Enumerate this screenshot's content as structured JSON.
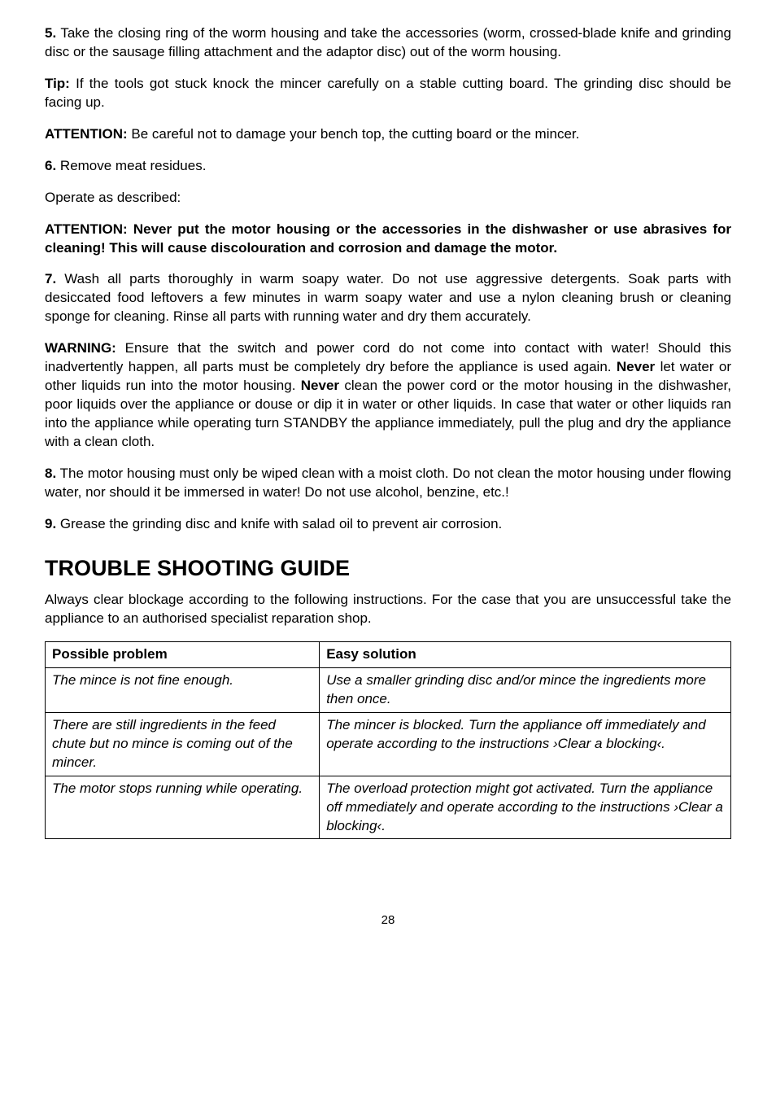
{
  "paragraphs": {
    "p5_lead": "5.",
    "p5_text": " Take the closing ring of the worm housing and take the accessories (worm, crossed-blade knife and grinding disc or the sausage filling attachment and the adaptor disc) out of the worm housing.",
    "tip_lead": "Tip:",
    "tip_text": " If the tools got stuck knock the mincer carefully on a stable cutting board. The grinding disc should be facing up.",
    "attention1_lead": "ATTENTION:",
    "attention1_text": " Be careful not to damage your bench top, the cutting board or the mincer.",
    "p6_lead": "6.",
    "p6_text": " Remove meat residues.",
    "operate": "Operate as described:",
    "attention_block": "ATTENTION: Never put the motor housing or the accessories in the dishwasher or use abrasives for cleaning! This will cause discolouration and corrosion and damage the motor.",
    "p7_lead": "7.",
    "p7_text": " Wash all parts thoroughly in warm soapy water. Do not use aggressive detergents. Soak parts with desiccated food leftovers a few minutes in warm soapy water and use a nylon cleaning brush or cleaning sponge for cleaning. Rinse all parts with running water and dry them accurately.",
    "warning_lead": "WARNING:",
    "warning_text1": " Ensure that the switch and power cord do not come into contact with water! Should this inadvertently happen, all parts must be completely dry before the appliance is used again. ",
    "warning_never1": "Never",
    "warning_text2": " let water or other liquids run into the motor housing. ",
    "warning_never2": "Never",
    "warning_text3": " clean the power cord or the motor housing in the dishwasher, poor liquids over the appliance or douse or dip it in water or other liquids. In case that water or other liquids ran into the appliance while operating turn STANDBY the appliance immediately, pull the plug and dry the appliance with a clean cloth.",
    "p8_lead": "8.",
    "p8_text": " The motor housing must only be wiped clean with a moist cloth. Do not clean the motor housing under flowing water, nor should it be immersed in water! Do not use alcohol, benzine, etc.!",
    "p9_lead": "9.",
    "p9_text": " Grease the grinding disc and knife with salad oil to prevent air corrosion."
  },
  "troubleshooting": {
    "heading": "TROUBLE SHOOTING GUIDE",
    "intro": "Always clear blockage according to the following instructions. For the case that you are unsuccessful take the appliance to an authorised specialist reparation shop.",
    "columns": {
      "problem": "Possible problem",
      "solution": "Easy solution"
    },
    "rows": [
      {
        "problem": "The mince is not fine enough.",
        "solution": "Use a smaller grinding disc and/or mince the ingredients more then once."
      },
      {
        "problem": "There are still ingredients in the feed chute but no mince is coming out of the mincer.",
        "solution": "The mincer is blocked. Turn the appliance off immediately and operate according to the instructions ›Clear a blocking‹."
      },
      {
        "problem": "The motor stops running while operating.",
        "solution": "The overload protection might got activated. Turn the appliance off mmediately and operate according to the instructions ›Clear a blocking‹."
      }
    ]
  },
  "page_number": "28"
}
